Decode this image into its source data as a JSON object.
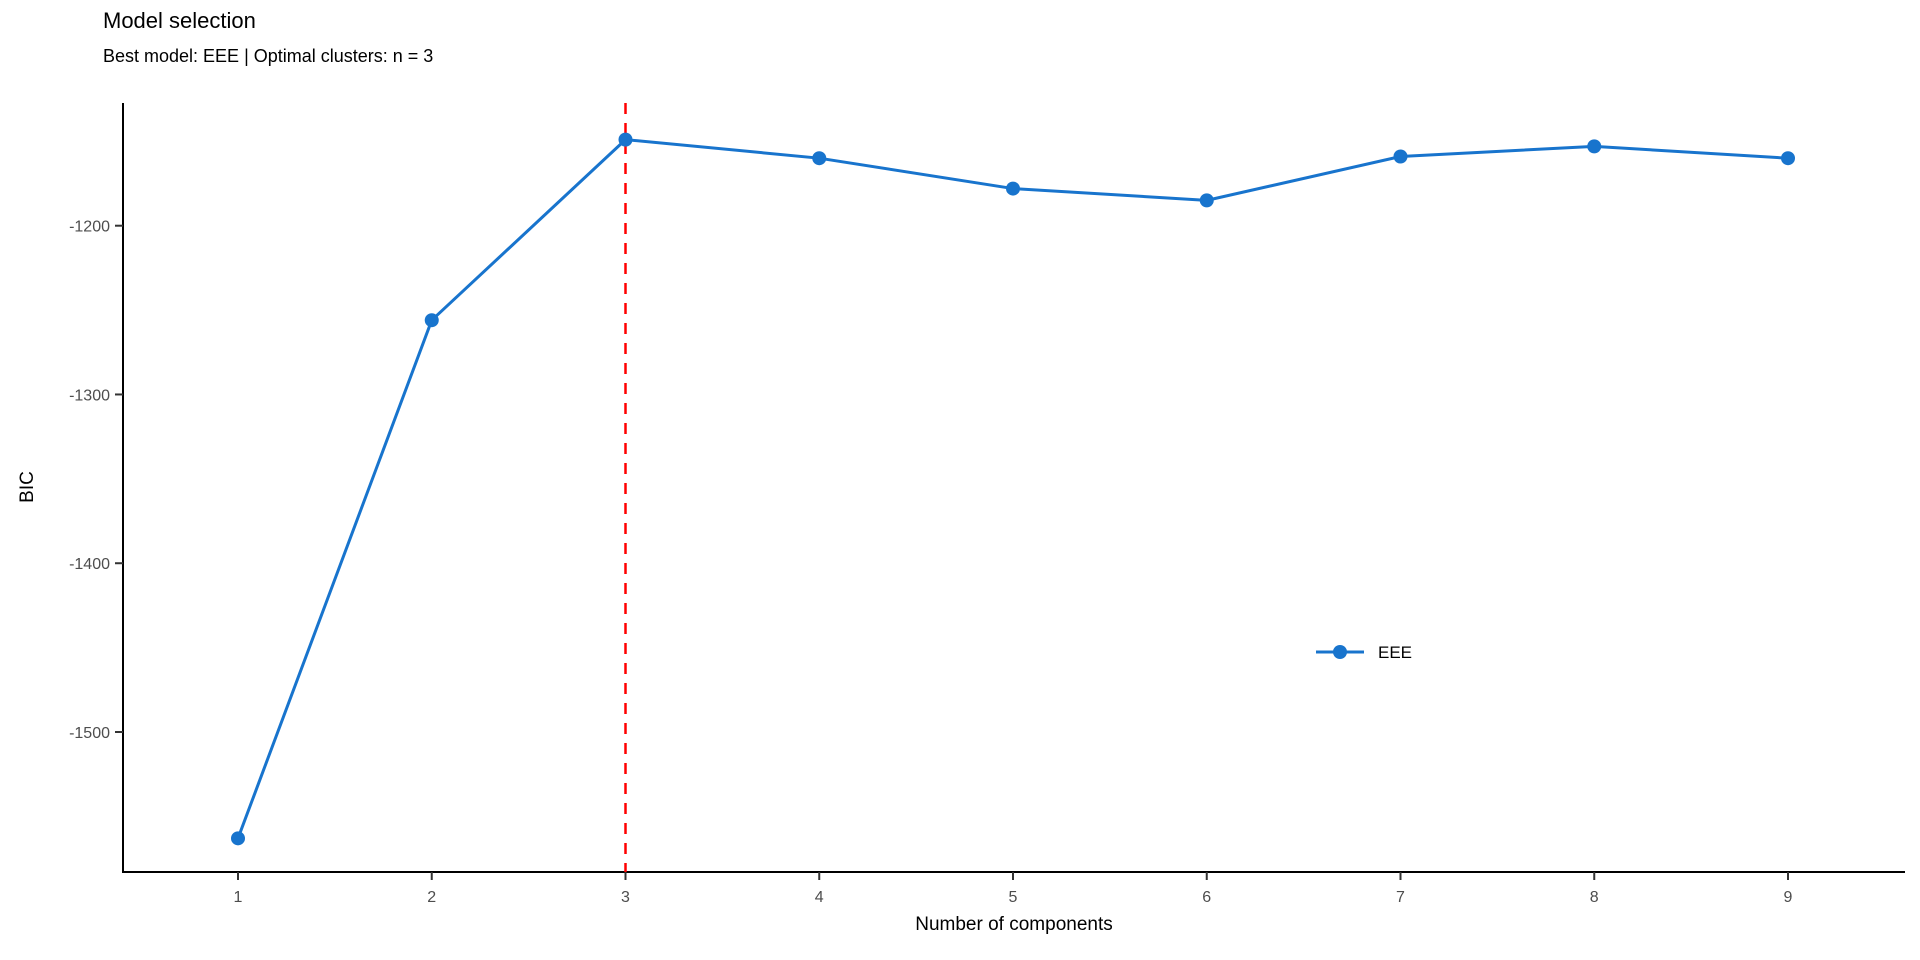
{
  "chart_data": {
    "type": "line",
    "title": "Model selection",
    "subtitle": "Best model: EEE | Optimal clusters: n = 3",
    "xlabel": "Number of components",
    "ylabel": "BIC",
    "x": [
      1,
      2,
      3,
      4,
      5,
      6,
      7,
      8,
      9
    ],
    "series": [
      {
        "name": "EEE",
        "values": [
          -1563,
          -1256,
          -1149,
          -1160,
          -1178,
          -1185,
          -1159,
          -1153,
          -1160
        ]
      }
    ],
    "x_ticks": [
      1,
      2,
      3,
      4,
      5,
      6,
      7,
      8,
      9
    ],
    "y_ticks": [
      -1200,
      -1300,
      -1400,
      -1500
    ],
    "xlim": [
      0.41,
      9.6
    ],
    "ylim": [
      -1583,
      -1127
    ],
    "grid": false,
    "legend": {
      "entries": [
        "EEE"
      ],
      "position": "inside-right",
      "marker": "line-with-dot"
    },
    "annotations": [
      {
        "type": "vline",
        "x": 3,
        "style": "dashed",
        "color": "#FF0000",
        "meaning": "optimal number of clusters"
      }
    ],
    "colors": {
      "series": "#1874CD",
      "vline": "#FF0000",
      "axis_line": "#000000",
      "tick_mark": "#333333",
      "tick_label": "#4D4D4D",
      "text": "#000000",
      "background": "#FFFFFF"
    }
  }
}
